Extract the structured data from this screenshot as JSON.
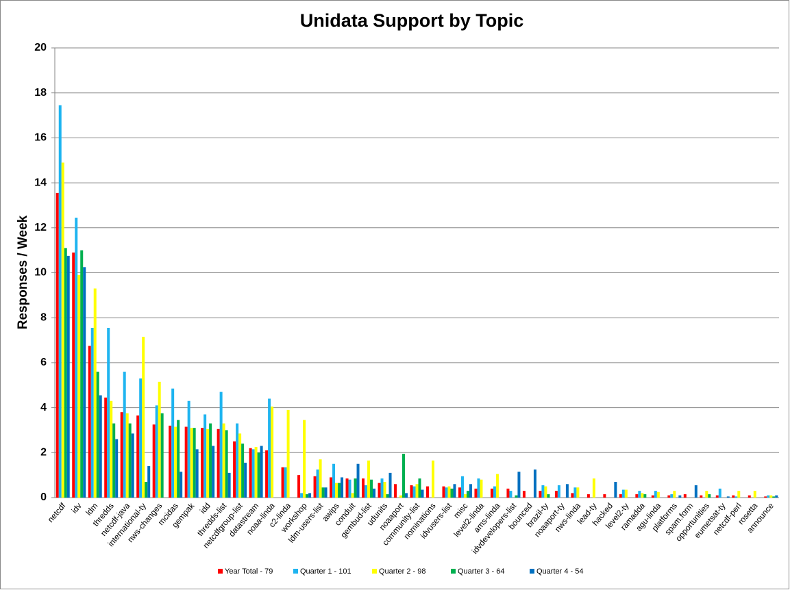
{
  "chart_data": {
    "type": "bar",
    "title": "Unidata Support by Topic",
    "y_label": "Responses / Week",
    "categories": [
      "netcdf",
      "idv",
      "ldm",
      "thredds",
      "netcdf-java",
      "international-ty",
      "nws-changes",
      "mcidas",
      "gempak",
      "idd",
      "thredds-list",
      "netcdfgroup-list",
      "datastream",
      "noaa-linda",
      "c2-linda",
      "workshop",
      "ldm-users-list",
      "awips",
      "conduit",
      "gembud-list",
      "udunits",
      "noaaport",
      "community-list",
      "nominations",
      "idvusers-list",
      "misc",
      "level2-linda",
      "ams-linda",
      "idvdevelopers-list",
      "bounced",
      "brazil-ty",
      "noaaport-ty",
      "nws-linda",
      "lead-ty",
      "hacked",
      "level2-ty",
      "ramadda",
      "agu-linda",
      "platforms",
      "spam.form",
      "opportunities",
      "eumetsat-ty",
      "netcdf-perl",
      "rosetta",
      "announce"
    ],
    "series": [
      {
        "name": "Year Total - 79",
        "color": "#ff0000",
        "values": [
          13.55,
          10.9,
          6.75,
          4.45,
          3.8,
          3.65,
          3.25,
          3.2,
          3.15,
          3.1,
          3.05,
          2.5,
          2.2,
          2.1,
          1.35,
          1.0,
          0.95,
          0.9,
          0.85,
          0.85,
          0.65,
          0.6,
          0.55,
          0.5,
          0.5,
          0.45,
          0.4,
          0.4,
          0.4,
          0.3,
          0.3,
          0.3,
          0.2,
          0.15,
          0.15,
          0.15,
          0.15,
          0.1,
          0.1,
          0.15,
          0.1,
          0.1,
          0.1,
          0.1,
          0.05
        ]
      },
      {
        "name": "Quarter 1 - 101",
        "color": "#1eb4f0",
        "values": [
          17.45,
          12.45,
          7.55,
          7.55,
          5.6,
          5.3,
          4.1,
          4.85,
          4.3,
          3.7,
          4.7,
          3.3,
          2.15,
          4.4,
          1.35,
          0.2,
          1.25,
          1.5,
          0.8,
          0.55,
          0.85,
          0,
          0.5,
          0,
          0.45,
          0.95,
          0.85,
          0.5,
          0.3,
          0,
          0.55,
          0.55,
          0.45,
          0,
          0,
          0.35,
          0.3,
          0.3,
          0.15,
          0,
          0,
          0.4,
          0.05,
          0,
          0.1
        ]
      },
      {
        "name": "Quarter 2 - 98",
        "color": "#ffff00",
        "values": [
          14.9,
          9.9,
          9.3,
          4.3,
          3.75,
          7.15,
          5.15,
          3.15,
          3.1,
          3.05,
          3.3,
          2.85,
          2.25,
          4.05,
          3.9,
          3.45,
          1.7,
          0.65,
          0.2,
          1.65,
          0.7,
          0.1,
          0.6,
          1.65,
          0.5,
          0.15,
          0.8,
          1.05,
          0,
          0,
          0.5,
          0,
          0.45,
          0.85,
          0,
          0.35,
          0.2,
          0.25,
          0.3,
          0,
          0.3,
          0,
          0.3,
          0.3,
          0.1
        ]
      },
      {
        "name": "Quarter 3 - 64",
        "color": "#00b050",
        "values": [
          11.1,
          11.0,
          5.6,
          3.3,
          3.3,
          0.7,
          3.75,
          3.45,
          3.1,
          3.3,
          3.0,
          2.4,
          2.0,
          0,
          0,
          0.15,
          0.45,
          0.65,
          0.85,
          0.8,
          0.15,
          1.95,
          0.85,
          0,
          0.4,
          0.3,
          0,
          0,
          0.1,
          0,
          0.15,
          0,
          0,
          0,
          0,
          0,
          0.15,
          0,
          0,
          0,
          0.15,
          0,
          0,
          0,
          0.05
        ]
      },
      {
        "name": "Quarter 4 - 54",
        "color": "#0070c0",
        "values": [
          10.75,
          10.25,
          4.55,
          2.6,
          2.85,
          1.4,
          0,
          1.15,
          2.15,
          2.3,
          1.1,
          1.55,
          2.3,
          0,
          0,
          0.2,
          0.45,
          0.9,
          1.5,
          0.4,
          1.1,
          0.2,
          0.35,
          0,
          0.6,
          0.6,
          0,
          0,
          1.15,
          1.25,
          0,
          0.6,
          0,
          0,
          0.7,
          0,
          0,
          0,
          0.1,
          0.55,
          0,
          0.05,
          0,
          0,
          0.1
        ]
      }
    ],
    "ylim": [
      0,
      20
    ],
    "yticks": [
      0,
      2,
      4,
      6,
      8,
      10,
      12,
      14,
      16,
      18,
      20
    ],
    "grid": true
  }
}
